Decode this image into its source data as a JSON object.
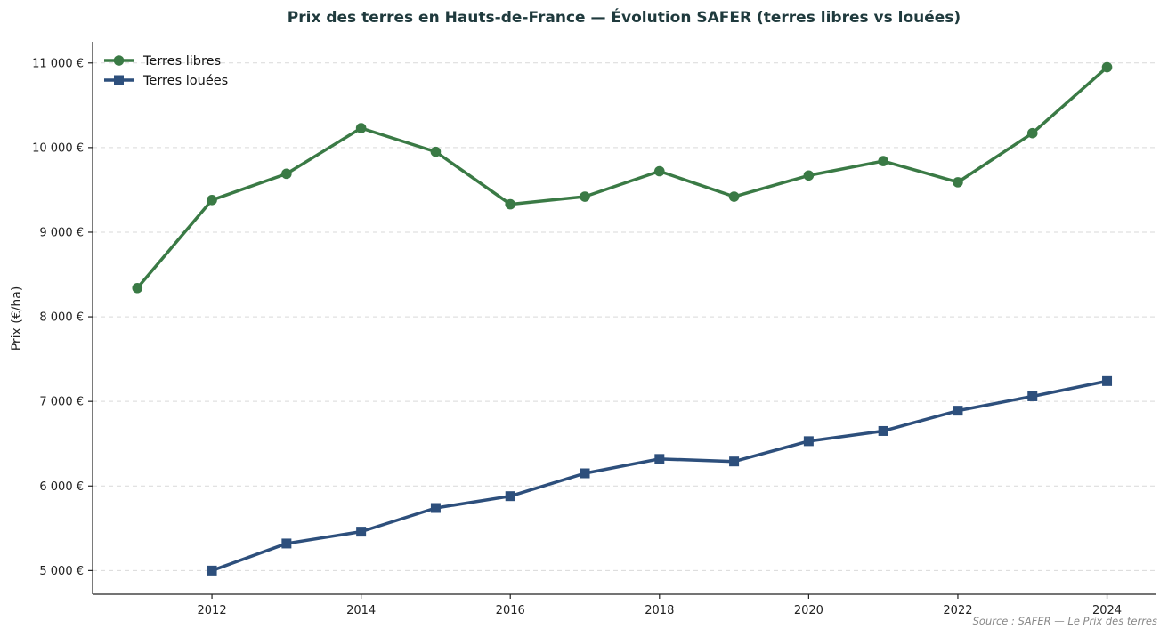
{
  "chart_data": {
    "type": "line",
    "title": "Prix des terres en Hauts-de-France — Évolution SAFER (terres libres vs louées)",
    "ylabel": "Prix (€/ha)",
    "xlabel": "",
    "xlim": [
      2010.4,
      2024.65
    ],
    "ylim": [
      4720,
      11250
    ],
    "x_ticks": [
      2012,
      2014,
      2016,
      2018,
      2020,
      2022,
      2024
    ],
    "y_ticks": [
      5000,
      6000,
      7000,
      8000,
      9000,
      10000,
      11000
    ],
    "y_tick_labels": [
      "5 000 €",
      "6 000 €",
      "7 000 €",
      "8 000 €",
      "9 000 €",
      "10 000 €",
      "11 000 €"
    ],
    "grid": "horizontal dashed",
    "legend_position": "top-left",
    "series": [
      {
        "name": "Terres libres",
        "color": "#3a7a45",
        "marker": "circle",
        "x": [
          2011,
          2012,
          2013,
          2014,
          2015,
          2016,
          2017,
          2018,
          2019,
          2020,
          2021,
          2022,
          2023,
          2024
        ],
        "values": [
          8340,
          9380,
          9690,
          10230,
          9950,
          9330,
          9420,
          9720,
          9420,
          9670,
          9840,
          9590,
          10170,
          10950
        ]
      },
      {
        "name": "Terres louées",
        "color": "#2d4f7c",
        "marker": "square",
        "x": [
          2012,
          2013,
          2014,
          2015,
          2016,
          2017,
          2018,
          2019,
          2020,
          2021,
          2022,
          2023,
          2024
        ],
        "values": [
          5000,
          5320,
          5460,
          5740,
          5880,
          6150,
          6320,
          6290,
          6530,
          6650,
          6890,
          7060,
          7240
        ]
      }
    ],
    "source": "Source : SAFER — Le Prix des terres"
  }
}
